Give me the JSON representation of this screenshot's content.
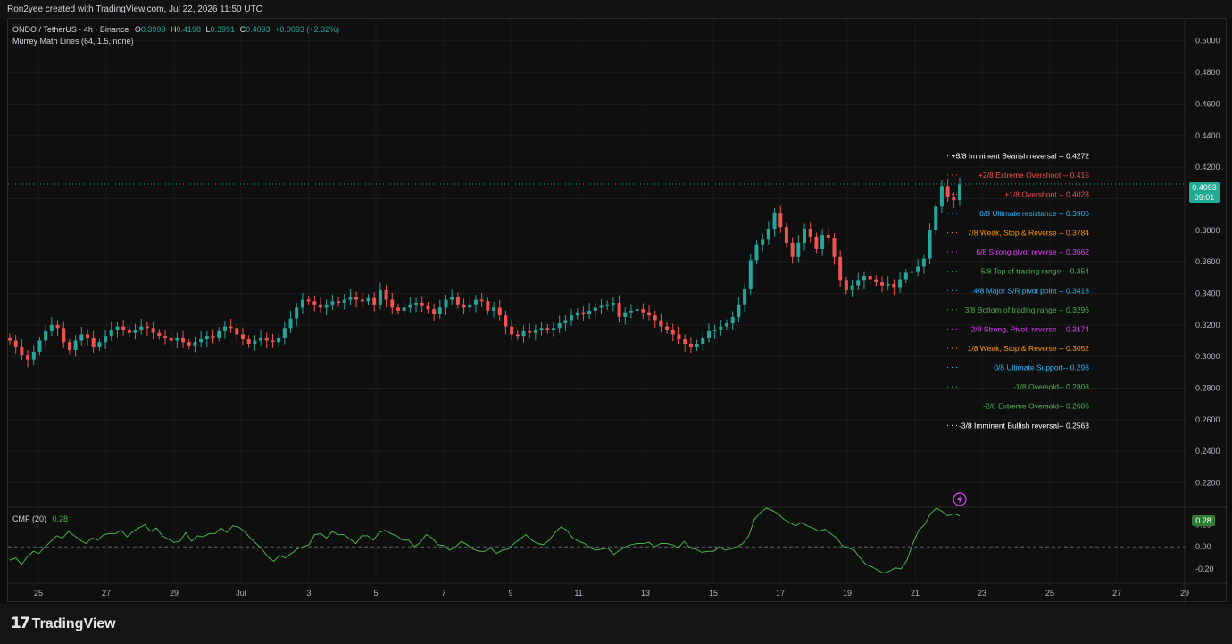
{
  "header": {
    "credit": "Ron2yee created with TradingView.com, Jul 22, 2026 11:50 UTC"
  },
  "legend": {
    "symbol": "ONDO / TetherUS · 4h · Binance",
    "open_label": "O",
    "open": "0.3999",
    "high_label": "H",
    "high": "0.4198",
    "low_label": "L",
    "low": "0.3991",
    "close_label": "C",
    "close": "0.4093",
    "change": "+0.0093 (+2.32%)",
    "indicator": "Murrey Math Lines (64, 1.5, none)"
  },
  "current_price": {
    "value": "0.4093",
    "countdown": "09:01"
  },
  "cmf": {
    "label": "CMF (20)",
    "value": "0.28",
    "tag": "0.28"
  },
  "branding": {
    "logo": "TradingView"
  },
  "colors": {
    "up": "#26a69a",
    "down": "#ef5350",
    "cmf_line": "#4caf50",
    "accent": "#22ab94"
  },
  "misc": {
    "alert_icon": "lightning-bolt-icon"
  },
  "chart_data": {
    "type": "candlestick",
    "price_axis": {
      "ticks": [
        "0.5000",
        "0.4800",
        "0.4600",
        "0.4400",
        "0.4200",
        "0.4000",
        "0.3800",
        "0.3600",
        "0.3400",
        "0.3200",
        "0.3000",
        "0.2800",
        "0.2600",
        "0.2400",
        "0.2200"
      ],
      "ylim": [
        0.205,
        0.514
      ]
    },
    "cmf_axis": {
      "ticks": [
        "0.20",
        "0.00",
        "-0.20"
      ],
      "ylim": [
        -0.33,
        0.35
      ]
    },
    "x_labels": [
      "25",
      "27",
      "29",
      "Jul",
      "3",
      "5",
      "7",
      "9",
      "11",
      "13",
      "15",
      "17",
      "19",
      "21",
      "23",
      "25",
      "27",
      "29"
    ],
    "murrey_lines": [
      {
        "label": "+3/8 Imminent Bearish reversal -- ",
        "value": "0.4272",
        "color": "#ffffff"
      },
      {
        "label": "+2/8 Extreme Overshoot -- ",
        "value": "0.415",
        "color": "#ef5350"
      },
      {
        "label": "+1/8 Overshoot -- ",
        "value": "0.4028",
        "color": "#ef5350"
      },
      {
        "label": "8/8 Ultimate resistance -- ",
        "value": "0.3906",
        "color": "#29b6f6"
      },
      {
        "label": "7/8 Weak, Stop & Reverse -- ",
        "value": "0.3784",
        "color": "#ff9800"
      },
      {
        "label": "6/8 Strong pivot reverse -- ",
        "value": "0.3662",
        "color": "#e040fb"
      },
      {
        "label": "5/8 Top of trading range -- ",
        "value": "0.354",
        "color": "#4caf50"
      },
      {
        "label": "4/8 Major S/R pivot point -- ",
        "value": "0.3418",
        "color": "#29b6f6"
      },
      {
        "label": "3/8 Bottom of trading range -- ",
        "value": "0.3296",
        "color": "#4caf50"
      },
      {
        "label": "2/8 Strong, Pivot, reverse -- ",
        "value": "0.3174",
        "color": "#e040fb"
      },
      {
        "label": "1/8 Weak, Stop & Reverse -- ",
        "value": "0.3052",
        "color": "#ff9800"
      },
      {
        "label": "0/8 Ultimate Support-- ",
        "value": "0.293",
        "color": "#29b6f6"
      },
      {
        "label": "-1/8 Oversold-- ",
        "value": "0.2808",
        "color": "#4caf50"
      },
      {
        "label": "-2/8 Extreme Oversold-- ",
        "value": "0.2686",
        "color": "#4caf50"
      },
      {
        "label": "-3/8 Imminent Bullish reversal-- ",
        "value": "0.2563",
        "color": "#ffffff"
      }
    ],
    "close_series": [
      0.31,
      0.306,
      0.301,
      0.298,
      0.303,
      0.31,
      0.316,
      0.32,
      0.318,
      0.309,
      0.304,
      0.31,
      0.314,
      0.312,
      0.306,
      0.309,
      0.313,
      0.317,
      0.319,
      0.317,
      0.315,
      0.317,
      0.319,
      0.318,
      0.315,
      0.313,
      0.312,
      0.31,
      0.312,
      0.309,
      0.307,
      0.309,
      0.311,
      0.313,
      0.312,
      0.316,
      0.319,
      0.318,
      0.314,
      0.311,
      0.308,
      0.31,
      0.312,
      0.31,
      0.309,
      0.312,
      0.318,
      0.324,
      0.331,
      0.336,
      0.335,
      0.333,
      0.331,
      0.333,
      0.335,
      0.334,
      0.336,
      0.338,
      0.336,
      0.335,
      0.337,
      0.333,
      0.342,
      0.336,
      0.331,
      0.329,
      0.331,
      0.333,
      0.334,
      0.332,
      0.33,
      0.327,
      0.331,
      0.336,
      0.338,
      0.333,
      0.331,
      0.333,
      0.336,
      0.335,
      0.329,
      0.331,
      0.326,
      0.319,
      0.314,
      0.313,
      0.316,
      0.315,
      0.317,
      0.318,
      0.317,
      0.318,
      0.321,
      0.323,
      0.326,
      0.328,
      0.327,
      0.329,
      0.331,
      0.332,
      0.333,
      0.334,
      0.325,
      0.328,
      0.329,
      0.33,
      0.328,
      0.326,
      0.323,
      0.319,
      0.317,
      0.314,
      0.311,
      0.308,
      0.306,
      0.308,
      0.312,
      0.316,
      0.317,
      0.319,
      0.321,
      0.325,
      0.333,
      0.343,
      0.361,
      0.371,
      0.374,
      0.381,
      0.391,
      0.382,
      0.372,
      0.363,
      0.372,
      0.381,
      0.376,
      0.368,
      0.377,
      0.375,
      0.363,
      0.348,
      0.342,
      0.345,
      0.348,
      0.351,
      0.349,
      0.347,
      0.345,
      0.346,
      0.344,
      0.349,
      0.353,
      0.354,
      0.357,
      0.362,
      0.38,
      0.395,
      0.408,
      0.401,
      0.399,
      0.409
    ]
  },
  "cmf_data": {
    "values": [
      -0.12,
      -0.1,
      -0.16,
      -0.09,
      -0.04,
      -0.06,
      0.0,
      0.05,
      0.1,
      0.08,
      0.14,
      0.1,
      0.06,
      0.03,
      0.08,
      0.06,
      0.11,
      0.12,
      0.12,
      0.15,
      0.09,
      0.14,
      0.17,
      0.2,
      0.14,
      0.17,
      0.1,
      0.07,
      0.04,
      0.05,
      0.13,
      0.05,
      0.1,
      0.09,
      0.12,
      0.12,
      0.17,
      0.13,
      0.19,
      0.18,
      0.14,
      0.08,
      0.03,
      -0.02,
      -0.09,
      -0.13,
      -0.08,
      -0.1,
      -0.06,
      -0.02,
      0.0,
      0.02,
      0.11,
      0.12,
      0.08,
      0.14,
      0.11,
      0.11,
      0.07,
      0.03,
      0.1,
      0.1,
      0.06,
      0.13,
      0.15,
      0.12,
      0.1,
      0.06,
      0.06,
      0.0,
      0.04,
      0.11,
      0.08,
      0.02,
      0.01,
      -0.03,
      0.0,
      0.05,
      0.02,
      -0.02,
      -0.04,
      -0.04,
      -0.01,
      -0.06,
      -0.03,
      -0.02,
      0.03,
      0.07,
      0.11,
      0.06,
      0.03,
      0.02,
      0.06,
      0.13,
      0.18,
      0.15,
      0.08,
      0.05,
      0.03,
      -0.01,
      -0.03,
      -0.02,
      -0.01,
      -0.07,
      -0.03,
      0.0,
      0.02,
      0.03,
      0.03,
      0.04,
      0.0,
      0.03,
      0.03,
      0.02,
      -0.01,
      0.05,
      -0.01,
      -0.02,
      -0.05,
      -0.04,
      -0.04,
      0.0,
      -0.03,
      -0.02,
      0.0,
      0.03,
      0.1,
      0.25,
      0.31,
      0.35,
      0.33,
      0.3,
      0.25,
      0.22,
      0.19,
      0.22,
      0.19,
      0.17,
      0.14,
      0.16,
      0.12,
      0.08,
      0.01,
      -0.01,
      -0.03,
      -0.1,
      -0.16,
      -0.18,
      -0.21,
      -0.24,
      -0.22,
      -0.19,
      -0.2,
      -0.12,
      0.03,
      0.15,
      0.2,
      0.3,
      0.35,
      0.32,
      0.28,
      0.3,
      0.28
    ]
  }
}
